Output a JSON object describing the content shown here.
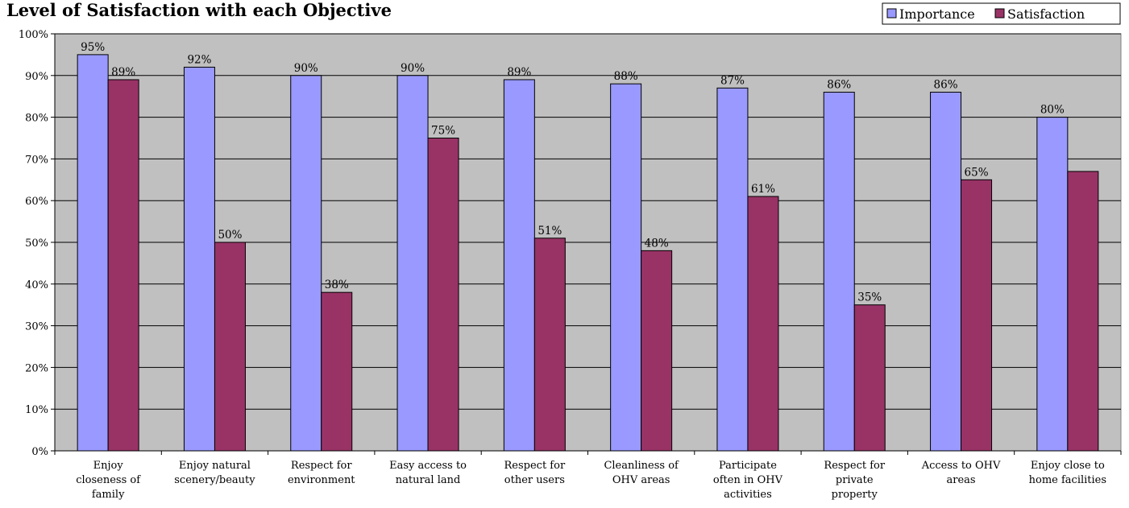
{
  "chart_data": {
    "type": "bar",
    "title": "Level of Satisfaction with each Objective",
    "xlabel": "",
    "ylabel": "",
    "ylim": [
      0,
      1
    ],
    "yticks": [
      "0%",
      "10%",
      "20%",
      "30%",
      "40%",
      "50%",
      "60%",
      "70%",
      "80%",
      "90%",
      "100%"
    ],
    "legend_position": "top-right",
    "grid": true,
    "categories": [
      [
        "Enjoy",
        "closeness of",
        "family"
      ],
      [
        "Enjoy natural",
        "scenery/beauty"
      ],
      [
        "Respect for",
        "environment"
      ],
      [
        "Easy access to",
        "natural land"
      ],
      [
        "Respect for",
        "other users"
      ],
      [
        "Cleanliness of",
        "OHV areas"
      ],
      [
        "Participate",
        "often in OHV",
        "activities"
      ],
      [
        "Respect for",
        "private",
        "property"
      ],
      [
        "Access to OHV",
        "areas"
      ],
      [
        "Enjoy close to",
        "home facilities"
      ]
    ],
    "series": [
      {
        "name": "Importance",
        "color": "#9999ff",
        "values": [
          0.95,
          0.92,
          0.9,
          0.9,
          0.89,
          0.88,
          0.87,
          0.86,
          0.86,
          0.8
        ],
        "labels": [
          "95%",
          "92%",
          "90%",
          "90%",
          "89%",
          "88%",
          "87%",
          "86%",
          "86%",
          "80%"
        ]
      },
      {
        "name": "Satisfaction",
        "color": "#993366",
        "values": [
          0.89,
          0.5,
          0.38,
          0.75,
          0.51,
          0.48,
          0.61,
          0.35,
          0.65,
          0.67
        ],
        "labels": [
          "89%",
          "50%",
          "38%",
          "75%",
          "51%",
          "48%",
          "61%",
          "35%",
          "65%",
          null
        ]
      }
    ],
    "plot_background": "#c0c0c0"
  }
}
